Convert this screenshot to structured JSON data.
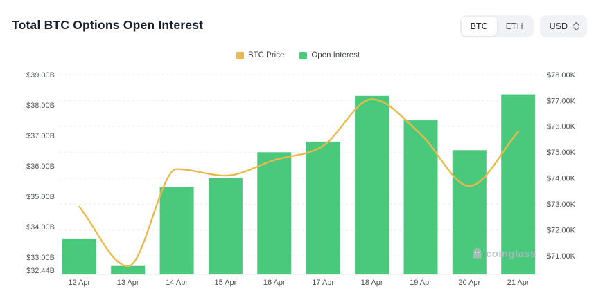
{
  "header": {
    "title": "Total BTC Options Open Interest",
    "coin_toggle": {
      "options": [
        "BTC",
        "ETH"
      ],
      "selected": "BTC"
    },
    "currency_select": {
      "value": "USD"
    }
  },
  "legend": [
    {
      "label": "BTC Price",
      "color": "#E9B94A"
    },
    {
      "label": "Open Interest",
      "color": "#4AC97D"
    }
  ],
  "watermark": "coinglass",
  "chart_data": {
    "type": "combo",
    "title": "Total BTC Options Open Interest",
    "categories": [
      "12 Apr",
      "13 Apr",
      "14 Apr",
      "15 Apr",
      "16 Apr",
      "17 Apr",
      "18 Apr",
      "19 Apr",
      "20 Apr",
      "21 Apr"
    ],
    "series": [
      {
        "name": "BTC Price",
        "type": "line",
        "yaxis": "right",
        "color": "#E9B94A",
        "values": [
          72.9,
          70.6,
          74.35,
          74.1,
          74.7,
          75.25,
          77.05,
          75.7,
          73.7,
          75.8
        ]
      },
      {
        "name": "Open Interest",
        "type": "bar",
        "yaxis": "left",
        "color": "#4AC97D",
        "values": [
          33.6,
          32.72,
          35.3,
          35.6,
          36.45,
          36.8,
          38.3,
          37.5,
          36.52,
          38.35
        ]
      }
    ],
    "left_axis": {
      "unit": "USD billions",
      "range": [
        32.44,
        39.0
      ],
      "ticks": [
        {
          "label": "$39.00B",
          "value": 39.0
        },
        {
          "label": "$38.00B",
          "value": 38.0
        },
        {
          "label": "$37.00B",
          "value": 37.0
        },
        {
          "label": "$36.00B",
          "value": 36.0
        },
        {
          "label": "$35.00B",
          "value": 35.0
        },
        {
          "label": "$34.00B",
          "value": 34.0
        },
        {
          "label": "$33.00B",
          "value": 33.0
        },
        {
          "label": "$32.44B",
          "value": 32.44
        }
      ]
    },
    "right_axis": {
      "unit": "USD thousands",
      "range": [
        71.0,
        78.0
      ],
      "ticks": [
        {
          "label": "$78.00K",
          "value": 78.0
        },
        {
          "label": "$77.00K",
          "value": 77.0
        },
        {
          "label": "$76.00K",
          "value": 76.0
        },
        {
          "label": "$75.00K",
          "value": 75.0
        },
        {
          "label": "$74.00K",
          "value": 74.0
        },
        {
          "label": "$73.00K",
          "value": 73.0
        },
        {
          "label": "$72.00K",
          "value": 72.0
        },
        {
          "label": "$71.00K",
          "value": 71.0
        }
      ]
    },
    "grid": "horizontal dashed",
    "legend_position": "top-center"
  }
}
